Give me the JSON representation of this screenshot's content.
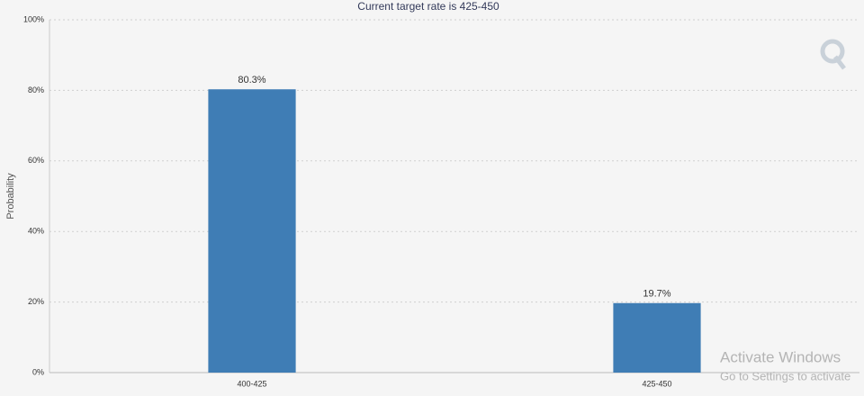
{
  "chart_data": {
    "type": "bar",
    "title": "Current target rate is 425-450",
    "y_label": "Probability",
    "categories": [
      "400-425",
      "425-450"
    ],
    "values": [
      80.3,
      19.7
    ],
    "value_labels": [
      "80.3%",
      "19.7%"
    ],
    "color": "#3f7db5",
    "ylim": [
      0,
      100
    ],
    "yticks": [
      {
        "value": 0,
        "label": "0%"
      },
      {
        "value": 20,
        "label": "20%"
      },
      {
        "value": 40,
        "label": "40%"
      },
      {
        "value": 60,
        "label": "60%"
      },
      {
        "value": 80,
        "label": "80%"
      },
      {
        "value": 100,
        "label": "100%"
      }
    ],
    "grid": true
  },
  "watermark": {
    "title": "Activate Windows",
    "subtitle": "Go to Settings to activate"
  }
}
